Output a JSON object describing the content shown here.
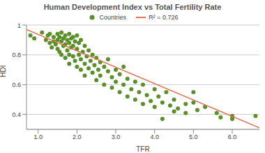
{
  "chart_data": {
    "type": "scatter",
    "title": "Human Development Index vs Total Fertility Rate",
    "x_label": "TFR",
    "y_label": "HDI",
    "xlim": [
      0.7,
      6.7
    ],
    "ylim": [
      0.3,
      1.0
    ],
    "xticks": [
      {
        "value": 1,
        "label": "1.0"
      },
      {
        "value": 2,
        "label": "2.0"
      },
      {
        "value": 3,
        "label": "3.0"
      },
      {
        "value": 4,
        "label": "4.0"
      },
      {
        "value": 5,
        "label": "5.0"
      },
      {
        "value": 6,
        "label": "6.0"
      }
    ],
    "yticks": [
      0.4,
      0.6,
      0.8,
      1
    ],
    "grid": true,
    "legend": "top",
    "series": [
      {
        "name": "Countries",
        "type": "scatter",
        "marker": "circle",
        "color": "#5b8f2a",
        "x": [
          0.8,
          0.9,
          1.1,
          1.2,
          1.25,
          1.3,
          1.3,
          1.35,
          1.4,
          1.4,
          1.45,
          1.5,
          1.5,
          1.5,
          1.55,
          1.55,
          1.6,
          1.6,
          1.6,
          1.65,
          1.65,
          1.7,
          1.7,
          1.7,
          1.75,
          1.75,
          1.8,
          1.8,
          1.8,
          1.8,
          1.85,
          1.85,
          1.9,
          1.9,
          1.9,
          1.95,
          1.95,
          2.0,
          2.0,
          2.0,
          2.05,
          2.05,
          2.1,
          2.1,
          2.1,
          2.15,
          2.2,
          2.2,
          2.2,
          2.25,
          2.3,
          2.3,
          2.35,
          2.4,
          2.4,
          2.45,
          2.5,
          2.5,
          2.55,
          2.6,
          2.6,
          2.7,
          2.7,
          2.8,
          2.8,
          2.9,
          2.9,
          3.0,
          3.0,
          3.1,
          3.1,
          3.2,
          3.2,
          3.3,
          3.3,
          3.4,
          3.5,
          3.5,
          3.6,
          3.7,
          3.7,
          3.8,
          3.9,
          4.0,
          4.0,
          4.1,
          4.2,
          4.2,
          4.3,
          4.4,
          4.5,
          4.5,
          4.6,
          4.8,
          4.8,
          5.0,
          5.0,
          5.1,
          5.3,
          5.6,
          5.7,
          6.0,
          6.0,
          6.6
        ],
        "values": [
          0.93,
          0.91,
          0.95,
          0.9,
          0.93,
          0.88,
          0.94,
          0.85,
          0.92,
          0.89,
          0.87,
          0.94,
          0.9,
          0.84,
          0.92,
          0.82,
          0.95,
          0.89,
          0.8,
          0.91,
          0.86,
          0.93,
          0.87,
          0.78,
          0.9,
          0.83,
          0.94,
          0.88,
          0.8,
          0.74,
          0.91,
          0.85,
          0.92,
          0.86,
          0.79,
          0.89,
          0.76,
          0.93,
          0.84,
          0.72,
          0.88,
          0.8,
          0.9,
          0.77,
          0.7,
          0.82,
          0.86,
          0.74,
          0.66,
          0.79,
          0.83,
          0.71,
          0.76,
          0.8,
          0.68,
          0.73,
          0.78,
          0.63,
          0.7,
          0.75,
          0.66,
          0.72,
          0.6,
          0.69,
          0.77,
          0.65,
          0.58,
          0.7,
          0.62,
          0.67,
          0.55,
          0.72,
          0.6,
          0.64,
          0.52,
          0.57,
          0.62,
          0.5,
          0.55,
          0.6,
          0.47,
          0.53,
          0.49,
          0.57,
          0.45,
          0.52,
          0.48,
          0.37,
          0.55,
          0.46,
          0.5,
          0.42,
          0.44,
          0.47,
          0.41,
          0.55,
          0.48,
          0.43,
          0.45,
          0.41,
          0.38,
          0.39,
          0.37,
          0.39
        ]
      },
      {
        "name": "R² = 0.726",
        "type": "line",
        "line_style": "solid",
        "color": "#e07050",
        "x": [
          0.7,
          6.7
        ],
        "values": [
          0.97,
          0.31
        ]
      }
    ]
  }
}
